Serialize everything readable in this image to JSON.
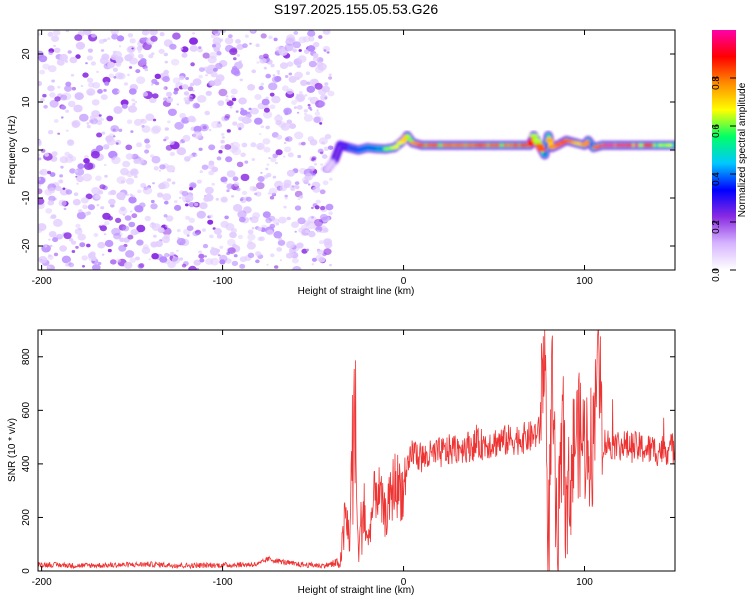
{
  "figure": {
    "title": "S197.2025.155.05.53.G26"
  },
  "chart_data": [
    {
      "type": "heatmap",
      "xlabel": "Height of straight line (km)",
      "ylabel": "Frequency (Hz)",
      "xlim": [
        -202,
        150
      ],
      "ylim": [
        -25,
        25
      ],
      "xticks": [
        -200,
        -100,
        0,
        100
      ],
      "yticks": [
        -20,
        -10,
        0,
        10,
        20
      ],
      "grid": false,
      "colorbar": {
        "label": "Normalized spectral amplitude",
        "range": [
          0,
          1
        ],
        "ticks": [
          0.0,
          0.2,
          0.4,
          0.6,
          0.8
        ],
        "colormap": [
          "#ffffff",
          "#d6b4ff",
          "#8a2be2",
          "#0000ff",
          "#00c8ff",
          "#00ff66",
          "#ffff00",
          "#ff8c00",
          "#ff0000",
          "#ff00aa"
        ]
      },
      "noise_region": {
        "x_from": -202,
        "x_to": -40,
        "freq_from": -25,
        "freq_to": 25,
        "amplitude": 0.1
      },
      "signal_band": {
        "x": [
          -42,
          -38,
          -35,
          -30,
          -25,
          -20,
          -15,
          -10,
          -5,
          0,
          2,
          5,
          10,
          20,
          30,
          40,
          50,
          60,
          70,
          72,
          75,
          78,
          80,
          82,
          85,
          90,
          95,
          100,
          102,
          105,
          110,
          120,
          130,
          140,
          150
        ],
        "freq": [
          -4,
          -2,
          1,
          0.5,
          0,
          0.5,
          0.3,
          0.2,
          0.5,
          2,
          3,
          1.5,
          1,
          1,
          1,
          1,
          1,
          1,
          1,
          3,
          1,
          -1,
          3,
          0.5,
          1,
          2,
          1.5,
          1,
          2,
          0.5,
          1,
          1,
          1,
          1,
          1
        ],
        "amplitude": [
          0.1,
          0.3,
          0.35,
          0.4,
          0.45,
          0.5,
          0.55,
          0.6,
          0.65,
          0.7,
          0.6,
          0.75,
          0.8,
          0.78,
          0.8,
          0.82,
          0.8,
          0.82,
          0.85,
          0.6,
          0.8,
          0.5,
          0.7,
          0.75,
          0.8,
          0.78,
          0.7,
          0.75,
          0.5,
          0.8,
          0.95,
          0.95,
          0.9,
          0.6,
          0.5
        ]
      }
    },
    {
      "type": "line",
      "xlabel": "Height of straight line (km)",
      "ylabel": "SNR (10 * v/v)",
      "xlim": [
        -202,
        150
      ],
      "ylim": [
        0,
        900
      ],
      "xticks": [
        -200,
        -100,
        0,
        100
      ],
      "yticks": [
        0,
        200,
        400,
        600,
        800
      ],
      "grid": false,
      "color": "#ee3333",
      "x": [
        -202,
        -180,
        -160,
        -140,
        -120,
        -100,
        -80,
        -75,
        -60,
        -45,
        -35,
        -32,
        -30,
        -27,
        -25,
        -22,
        -20,
        -15,
        -10,
        -5,
        0,
        5,
        10,
        20,
        30,
        40,
        50,
        60,
        70,
        75,
        78,
        80,
        82,
        85,
        88,
        90,
        95,
        100,
        105,
        107,
        110,
        120,
        130,
        140,
        150
      ],
      "y": [
        25,
        20,
        22,
        25,
        20,
        22,
        25,
        45,
        25,
        20,
        30,
        200,
        120,
        620,
        60,
        260,
        100,
        320,
        200,
        330,
        300,
        450,
        420,
        440,
        460,
        470,
        480,
        490,
        500,
        520,
        880,
        50,
        700,
        30,
        540,
        200,
        520,
        480,
        470,
        920,
        480,
        470,
        460,
        450,
        460
      ]
    }
  ]
}
